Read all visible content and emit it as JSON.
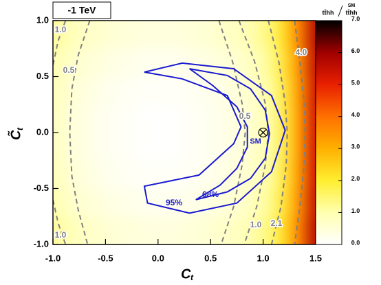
{
  "chart_data": {
    "type": "heatmap",
    "title": "-1 TeV",
    "xlabel": {
      "main": "C",
      "sub": "t"
    },
    "ylabel": {
      "main": "C̃",
      "sub": "t"
    },
    "xlim": [
      -1,
      1.5
    ],
    "xticks": [
      {
        "value": -1,
        "label": "-1.0"
      },
      -0.5,
      {
        "value": 0,
        "label": "0.0"
      },
      0.5,
      {
        "value": 1,
        "label": "1.0"
      },
      1.5
    ],
    "ylim": [
      -1,
      1
    ],
    "yticks": [
      {
        "value": -1,
        "label": "-1.0"
      },
      -0.5,
      {
        "value": 0,
        "label": "0.0"
      },
      0.5,
      {
        "value": 1,
        "label": "1.0"
      }
    ],
    "heatmap": {
      "x": [
        -0.95,
        -0.85,
        -0.75,
        -0.65,
        -0.55,
        -0.45,
        -0.35,
        -0.25,
        -0.15,
        -0.05,
        0.05,
        0.15,
        0.25,
        0.35,
        0.45,
        0.55,
        0.65,
        0.75,
        0.85,
        0.95,
        1.05,
        1.15,
        1.25,
        1.35,
        1.45
      ],
      "y": [
        -0.875,
        -0.625,
        -0.375,
        -0.125,
        0.125,
        0.375,
        0.625,
        0.875
      ],
      "z": [
        [
          1.15,
          0.92,
          0.8,
          0.7,
          0.62,
          0.55,
          0.5,
          0.46,
          0.43,
          0.42,
          0.42,
          0.43,
          0.46,
          0.5,
          0.55,
          0.62,
          0.7,
          0.8,
          0.93,
          1.15,
          1.4,
          2.0,
          2.8,
          3.9,
          5.6
        ],
        [
          0.95,
          0.72,
          0.6,
          0.5,
          0.42,
          0.35,
          0.3,
          0.26,
          0.23,
          0.22,
          0.22,
          0.23,
          0.26,
          0.3,
          0.35,
          0.42,
          0.5,
          0.6,
          0.73,
          0.95,
          1.2,
          1.8,
          2.6,
          3.7,
          5.4
        ],
        [
          0.82,
          0.59,
          0.47,
          0.37,
          0.29,
          0.22,
          0.17,
          0.13,
          0.1,
          0.09,
          0.09,
          0.1,
          0.13,
          0.17,
          0.22,
          0.29,
          0.37,
          0.47,
          0.6,
          0.82,
          1.07,
          1.67,
          2.47,
          3.57,
          5.27
        ],
        [
          0.76,
          0.53,
          0.41,
          0.31,
          0.23,
          0.16,
          0.11,
          0.07,
          0.04,
          0.03,
          0.03,
          0.04,
          0.07,
          0.11,
          0.16,
          0.23,
          0.31,
          0.41,
          0.54,
          0.76,
          1.01,
          1.61,
          2.41,
          3.51,
          5.21
        ],
        [
          0.76,
          0.53,
          0.41,
          0.31,
          0.23,
          0.16,
          0.11,
          0.07,
          0.04,
          0.03,
          0.03,
          0.04,
          0.07,
          0.11,
          0.16,
          0.23,
          0.31,
          0.41,
          0.54,
          0.76,
          1.01,
          1.61,
          2.41,
          3.51,
          5.21
        ],
        [
          0.82,
          0.59,
          0.47,
          0.37,
          0.29,
          0.22,
          0.17,
          0.13,
          0.1,
          0.09,
          0.09,
          0.1,
          0.13,
          0.17,
          0.22,
          0.29,
          0.37,
          0.47,
          0.6,
          0.82,
          1.07,
          1.67,
          2.47,
          3.57,
          5.27
        ],
        [
          0.95,
          0.72,
          0.6,
          0.5,
          0.42,
          0.35,
          0.3,
          0.26,
          0.23,
          0.22,
          0.22,
          0.23,
          0.26,
          0.3,
          0.35,
          0.42,
          0.5,
          0.6,
          0.73,
          0.95,
          1.2,
          1.8,
          2.6,
          3.7,
          5.4
        ],
        [
          1.15,
          0.92,
          0.8,
          0.7,
          0.62,
          0.55,
          0.5,
          0.46,
          0.43,
          0.42,
          0.42,
          0.43,
          0.46,
          0.5,
          0.55,
          0.62,
          0.7,
          0.8,
          0.93,
          1.15,
          1.4,
          2.0,
          2.8,
          3.9,
          5.6
        ]
      ]
    },
    "colorbar": {
      "zlim": [
        0,
        7
      ],
      "zticks": [
        {
          "value": 0,
          "label": "0.0"
        },
        {
          "value": 1,
          "label": "1.0"
        },
        {
          "value": 2,
          "label": "2.0"
        },
        {
          "value": 3,
          "label": "3.0"
        },
        {
          "value": 4,
          "label": "4.0"
        },
        {
          "value": 5,
          "label": "5.0"
        },
        {
          "value": 6,
          "label": "6.0"
        },
        {
          "value": 7,
          "label": "7.0"
        }
      ],
      "colors": [
        "#ffffff",
        "#ffffb0",
        "#ffee30",
        "#ffb000",
        "#ff7000",
        "#e82000",
        "#a00000",
        "#000000"
      ],
      "label": {
        "numerator": "tt̄hh",
        "superscript": "SM",
        "denominator": "tt̄hh"
      }
    },
    "contours": [
      {
        "label": "95%",
        "color": "#1a1ad0",
        "x": [
          -0.13,
          0.23,
          0.72,
          1.08,
          1.21,
          1.08,
          0.75,
          0.3,
          -0.1,
          -0.13,
          0.39,
          0.72,
          0.79,
          0.66,
          0.23
        ],
        "y": [
          0.54,
          0.62,
          0.57,
          0.33,
          0.02,
          -0.35,
          -0.63,
          -0.72,
          -0.63,
          -0.48,
          -0.38,
          -0.1,
          0.05,
          0.33,
          0.48
        ]
      },
      {
        "label": "68%",
        "color": "#1a1ad0",
        "x": [
          0.3,
          0.66,
          0.88,
          1.02,
          1.06,
          1.02,
          0.88,
          0.66,
          0.36,
          0.59,
          0.75,
          0.85,
          0.85,
          0.75,
          0.52
        ],
        "y": [
          0.57,
          0.51,
          0.39,
          0.2,
          -0.01,
          -0.23,
          -0.41,
          -0.53,
          -0.6,
          -0.47,
          -0.32,
          -0.13,
          0.05,
          0.23,
          0.42
        ]
      }
    ],
    "level_curves": [
      {
        "level": 1,
        "level_label": "1.0",
        "x": [
          -0.88,
          -0.95,
          -1.0
        ],
        "y": [
          1.0,
          0.82,
          0.6
        ]
      },
      {
        "level": 1,
        "level_label": "1.0",
        "x": [
          -1.0,
          -0.95,
          -0.88
        ],
        "y": [
          -0.6,
          -0.81,
          -1.0
        ]
      },
      {
        "level": 0.5,
        "level_label": "0.5",
        "x": [
          -0.65,
          -0.76,
          -0.82,
          -0.84,
          -0.82,
          -0.76,
          -0.67
        ],
        "y": [
          1.0,
          0.69,
          0.39,
          0,
          -0.39,
          -0.69,
          -1.0
        ]
      },
      {
        "level": 0.5,
        "level_label": "0.5",
        "x": [
          0.58,
          0.71,
          0.8,
          0.83,
          0.8,
          0.72,
          0.6
        ],
        "y": [
          1.0,
          0.63,
          0.26,
          0,
          -0.29,
          -0.66,
          -1.0
        ]
      },
      {
        "level": 1,
        "level_label": "1.0",
        "x": [
          0.77,
          0.92,
          1.02,
          1.05,
          1.02,
          0.94,
          0.82
        ],
        "y": [
          1.0,
          0.63,
          0.26,
          0,
          -0.29,
          -0.66,
          -1.0
        ]
      },
      {
        "level": 2.1,
        "level_label": "2.1",
        "x": [
          1.05,
          1.15,
          1.21,
          1.23,
          1.22,
          1.17,
          1.08
        ],
        "y": [
          1.0,
          0.63,
          0.26,
          0,
          -0.29,
          -0.66,
          -1.0
        ]
      },
      {
        "level": 4,
        "level_label": "4.0",
        "x": [
          1.3,
          1.35,
          1.39,
          1.4,
          1.39,
          1.35,
          1.3
        ],
        "y": [
          1.0,
          0.63,
          0.26,
          0,
          -0.29,
          -0.66,
          -1.0
        ]
      }
    ],
    "sm_point": {
      "x": 1,
      "y": 0,
      "label": "SM"
    }
  }
}
